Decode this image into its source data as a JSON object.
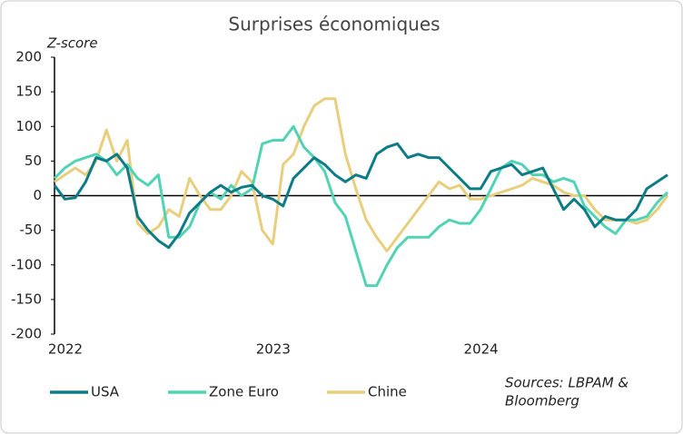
{
  "chart_data": {
    "type": "line",
    "title": "Surprises économiques",
    "y_label": "Z-score",
    "sources": [
      "Sources: LBPAM &",
      "Bloomberg"
    ],
    "x": [
      2022,
      2022.05,
      2022.1,
      2022.15,
      2022.2,
      2022.25,
      2022.3,
      2022.35,
      2022.4,
      2022.45,
      2022.5,
      2022.55,
      2022.6,
      2022.65,
      2022.7,
      2022.75,
      2022.8,
      2022.85,
      2022.9,
      2022.95,
      2023,
      2023.05,
      2023.1,
      2023.15,
      2023.2,
      2023.25,
      2023.3,
      2023.35,
      2023.4,
      2023.45,
      2023.5,
      2023.55,
      2023.6,
      2023.65,
      2023.7,
      2023.75,
      2023.8,
      2023.85,
      2023.9,
      2023.95,
      2024,
      2024.05,
      2024.1,
      2024.15,
      2024.2,
      2024.25,
      2024.3,
      2024.35,
      2024.4,
      2024.45,
      2024.5,
      2024.55,
      2024.6,
      2024.65,
      2024.7,
      2024.75,
      2024.8,
      2024.85,
      2024.9,
      2024.95
    ],
    "series": [
      {
        "name": "USA",
        "color": "#0e7c86",
        "values": [
          15,
          -5,
          -3,
          20,
          55,
          50,
          60,
          40,
          -30,
          -50,
          -65,
          -75,
          -55,
          -25,
          -10,
          5,
          15,
          5,
          12,
          15,
          0,
          -5,
          -15,
          25,
          40,
          55,
          45,
          30,
          20,
          30,
          25,
          60,
          70,
          75,
          55,
          60,
          55,
          55,
          40,
          25,
          10,
          10,
          35,
          40,
          45,
          30,
          35,
          40,
          10,
          -20,
          -5,
          -20,
          -45,
          -30,
          -35,
          -35,
          -20,
          10,
          20,
          30
        ]
      },
      {
        "name": "Zone Euro",
        "color": "#52d3b5",
        "values": [
          25,
          40,
          50,
          55,
          60,
          50,
          30,
          45,
          25,
          15,
          30,
          -60,
          -60,
          -45,
          -10,
          5,
          -5,
          15,
          0,
          10,
          75,
          80,
          80,
          100,
          70,
          55,
          35,
          -10,
          -30,
          -80,
          -130,
          -130,
          -100,
          -75,
          -60,
          -60,
          -60,
          -45,
          -35,
          -40,
          -40,
          -20,
          10,
          40,
          50,
          45,
          30,
          30,
          20,
          25,
          20,
          -15,
          -30,
          -45,
          -55,
          -35,
          -35,
          -30,
          -10,
          5
        ]
      },
      {
        "name": "Chine",
        "color": "#e8cf7e",
        "values": [
          20,
          30,
          40,
          30,
          50,
          95,
          50,
          80,
          -40,
          -55,
          -45,
          -20,
          -30,
          25,
          0,
          -20,
          -20,
          0,
          35,
          20,
          -50,
          -70,
          45,
          60,
          100,
          130,
          140,
          140,
          60,
          10,
          -35,
          -60,
          -80,
          -60,
          -40,
          -20,
          0,
          20,
          10,
          15,
          -5,
          -5,
          0,
          5,
          10,
          15,
          25,
          20,
          15,
          5,
          0,
          0,
          -20,
          -35,
          -35,
          -35,
          -40,
          -35,
          -20,
          0
        ]
      }
    ],
    "xlim": [
      2022,
      2024.95
    ],
    "xticks": [
      2022,
      2023,
      2024
    ],
    "ylim": [
      -200,
      200
    ],
    "yticks": [
      -200,
      -150,
      -100,
      -50,
      0,
      50,
      100,
      150,
      200
    ]
  }
}
